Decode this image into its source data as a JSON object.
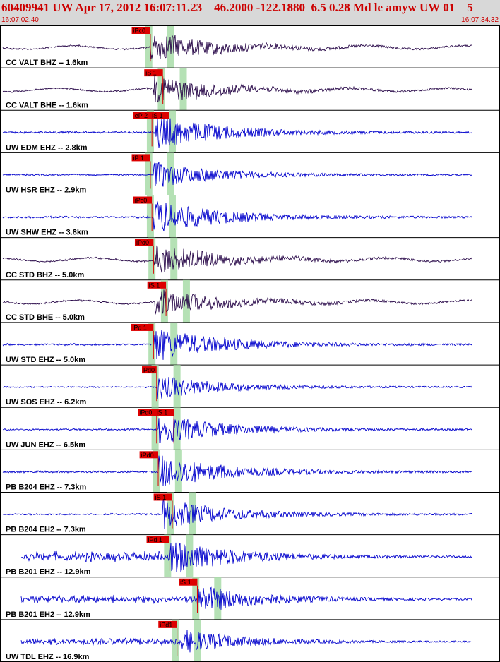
{
  "header": {
    "title": "60409941 UW Apr 17, 2012 16:07:11.23    46.2000 -122.1880  6.5 0.28 Md le amyw UW 01    5",
    "start_time": "16:07:02.40",
    "end_time": "16:07:34.32"
  },
  "colors": {
    "header_bg": "#d8d8d8",
    "header_text": "#cc0000",
    "trace_blue": "#0000cc",
    "trace_dark": "#2a0a4a",
    "pick_red": "#dd0000",
    "window_green": "#a8dca8"
  },
  "chart_data": {
    "type": "seismogram",
    "event_id": "60409941",
    "network": "UW",
    "origin_time": "Apr 17, 2012 16:07:11.23",
    "latitude": 46.2,
    "longitude": -122.188,
    "depth": 6.5,
    "magnitude": 0.28,
    "magnitude_type": "Md",
    "time_range": [
      "16:07:02.40",
      "16:07:34.32"
    ],
    "traces": [
      {
        "label": "CC VALT BHZ -- 1.6km",
        "color": "dark",
        "picks": [
          {
            "label": "iPc0",
            "time": 9.6
          }
        ],
        "arrival": 9.6,
        "amp": 0.75
      },
      {
        "label": "CC VALT BHE -- 1.6km",
        "color": "dark",
        "picks": [
          {
            "label": "iS 1",
            "time": 10.4
          }
        ],
        "arrival": 9.8,
        "amp": 0.7
      },
      {
        "label": "UW EDM EHZ -- 2.8km",
        "color": "blue",
        "picks": [
          {
            "label": "eP 2",
            "time": 9.7
          },
          {
            "label": "iS 1",
            "time": 10.8
          }
        ],
        "arrival": 9.9,
        "amp": 0.85
      },
      {
        "label": "UW HSR EHZ -- 2.9km",
        "color": "blue",
        "picks": [
          {
            "label": "iP 1",
            "time": 9.6
          }
        ],
        "arrival": 9.8,
        "amp": 0.65
      },
      {
        "label": "UW SHW EHZ -- 3.8km",
        "color": "blue",
        "picks": [
          {
            "label": "iPc0",
            "time": 9.7
          }
        ],
        "arrival": 9.8,
        "amp": 0.85
      },
      {
        "label": "CC STD BHZ -- 5.0km",
        "color": "dark",
        "picks": [
          {
            "label": "iPd0",
            "time": 9.8
          }
        ],
        "arrival": 9.8,
        "amp": 0.75
      },
      {
        "label": "CC STD BHE -- 5.0km",
        "color": "dark",
        "picks": [
          {
            "label": "iS 1",
            "time": 10.6
          }
        ],
        "arrival": 9.9,
        "amp": 0.7
      },
      {
        "label": "UW STD EHZ -- 5.0km",
        "color": "blue",
        "picks": [
          {
            "label": "iPd 1",
            "time": 9.8
          }
        ],
        "arrival": 9.8,
        "amp": 0.85
      },
      {
        "label": "UW SOS EHZ -- 6.2km",
        "color": "blue",
        "picks": [
          {
            "label": "Pd0",
            "time": 10.0
          }
        ],
        "arrival": 10.0,
        "amp": 0.6
      },
      {
        "label": "UW JUN EHZ -- 6.5km",
        "color": "blue",
        "picks": [
          {
            "label": "iPd0",
            "time": 10.0
          },
          {
            "label": "iS 1",
            "time": 11.1
          }
        ],
        "arrival": 10.1,
        "amp": 0.75
      },
      {
        "label": "PB B204 EHZ -- 7.3km",
        "color": "blue",
        "picks": [
          {
            "label": "iPd0",
            "time": 10.1
          }
        ],
        "arrival": 10.1,
        "amp": 0.85
      },
      {
        "label": "PB B204 EH2 -- 7.3km",
        "color": "blue",
        "picks": [
          {
            "label": "iS 1",
            "time": 11.0
          }
        ],
        "arrival": 10.4,
        "amp": 0.75
      },
      {
        "label": "PB B201 EHZ -- 12.9km",
        "color": "blue",
        "picks": [
          {
            "label": "iPd 1",
            "time": 10.8
          }
        ],
        "arrival": 10.9,
        "amp": 0.85
      },
      {
        "label": "PB B201 EH2 -- 12.9km",
        "color": "blue",
        "picks": [
          {
            "label": "iS 1",
            "time": 12.6
          }
        ],
        "arrival": 12.6,
        "amp": 0.7
      },
      {
        "label": "UW TDL EHZ -- 16.9km",
        "color": "blue",
        "picks": [
          {
            "label": "iPd1",
            "time": 11.3
          }
        ],
        "arrival": 11.6,
        "amp": 0.6
      }
    ]
  }
}
